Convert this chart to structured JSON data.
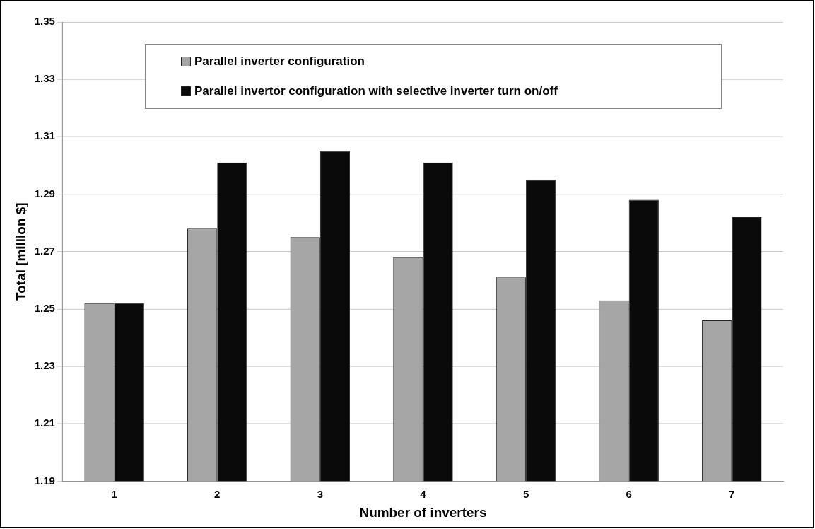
{
  "chart_data": {
    "type": "bar",
    "xlabel": "Number of inverters",
    "ylabel": "Total [million $]",
    "categories": [
      "1",
      "2",
      "3",
      "4",
      "5",
      "6",
      "7"
    ],
    "series": [
      {
        "name": "Parallel inverter configuration",
        "color": "#a6a6a6",
        "values": [
          1.252,
          1.278,
          1.275,
          1.268,
          1.261,
          1.253,
          1.246
        ]
      },
      {
        "name": "Parallel invertor configuration with selective inverter turn on/off",
        "color": "#0a0a0a",
        "values": [
          1.252,
          1.301,
          1.305,
          1.301,
          1.295,
          1.288,
          1.282
        ]
      }
    ],
    "ylim": [
      1.19,
      1.35
    ],
    "yticks": [
      1.19,
      1.21,
      1.23,
      1.25,
      1.27,
      1.29,
      1.31,
      1.33,
      1.35
    ],
    "grid": "y",
    "legend": "top"
  }
}
